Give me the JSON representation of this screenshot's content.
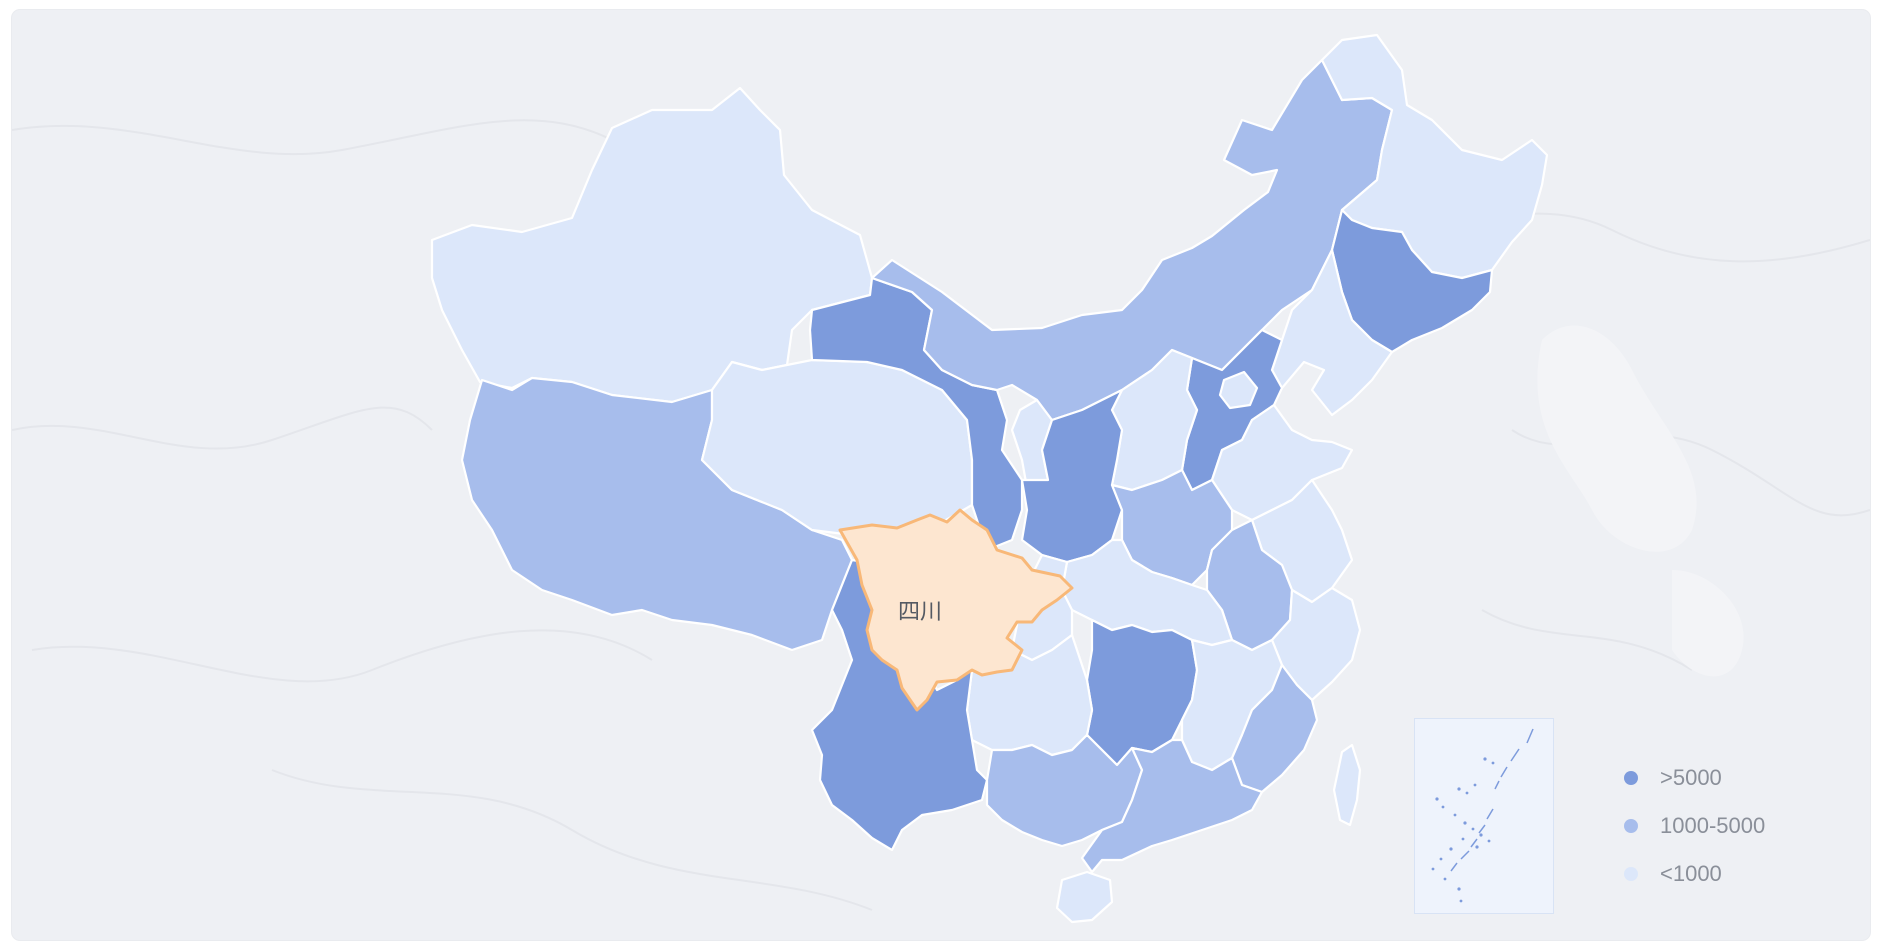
{
  "legend": {
    "items": [
      {
        "label": ">5000",
        "color": "#7d9bdc"
      },
      {
        "label": "1000-5000",
        "color": "#a7bdec"
      },
      {
        "label": "<1000",
        "color": "#dce7fa"
      }
    ]
  },
  "selected_region": {
    "label": "四川",
    "highlight_fill": "#fde6d0",
    "highlight_stroke": "#f8b878"
  },
  "map": {
    "background_color": "#eef0f4",
    "tiers": {
      "high": "#7d9bdc",
      "mid": "#a7bdec",
      "low": "#dce7fa"
    }
  }
}
